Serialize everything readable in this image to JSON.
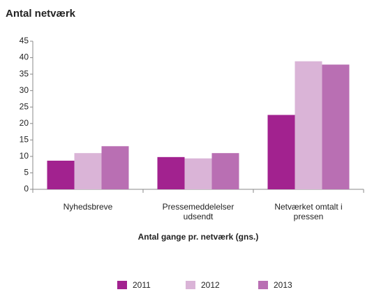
{
  "chart_data": {
    "type": "bar",
    "title": "Antal netværk",
    "x_label": "Antal gange pr. netværk (gns.)",
    "categories": [
      "Nyhedsbreve",
      "Pressemeddelelser udsendt",
      "Netværket omtalt i pressen"
    ],
    "series": [
      {
        "name": "2011",
        "color": "#a2228f",
        "values": [
          8.7,
          9.8,
          22.6
        ]
      },
      {
        "name": "2012",
        "color": "#dab4d7",
        "values": [
          11,
          9.4,
          38.9
        ]
      },
      {
        "name": "2013",
        "color": "#b96fb3",
        "values": [
          13.1,
          11,
          37.9
        ]
      }
    ],
    "ylim": [
      0,
      45
    ],
    "yticks": [
      0,
      5,
      10,
      15,
      20,
      25,
      30,
      35,
      40,
      45
    ],
    "grid": false,
    "legend": "bottom"
  }
}
